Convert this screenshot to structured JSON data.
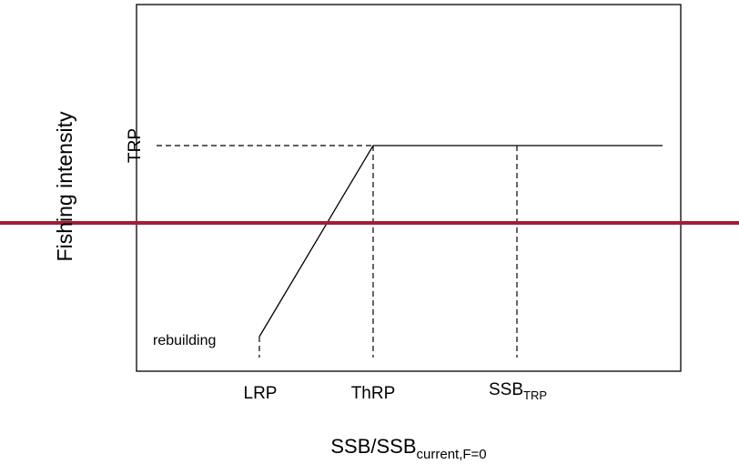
{
  "chart_data": {
    "type": "line",
    "title": "",
    "xlabel": {
      "main": "SSB/SSB",
      "sub": "current,F=0"
    },
    "ylabel": "Fishing intensity",
    "x_ticks": [
      {
        "label": "LRP"
      },
      {
        "label": "ThRP"
      },
      {
        "label": "SSB",
        "sub": "TRP"
      }
    ],
    "y_ticks": [
      {
        "label": "TRP"
      }
    ],
    "annotations": [
      {
        "text": "rebuilding"
      }
    ],
    "hcr_line_color": "#000000",
    "overlay_line_color": "#a31d36"
  }
}
